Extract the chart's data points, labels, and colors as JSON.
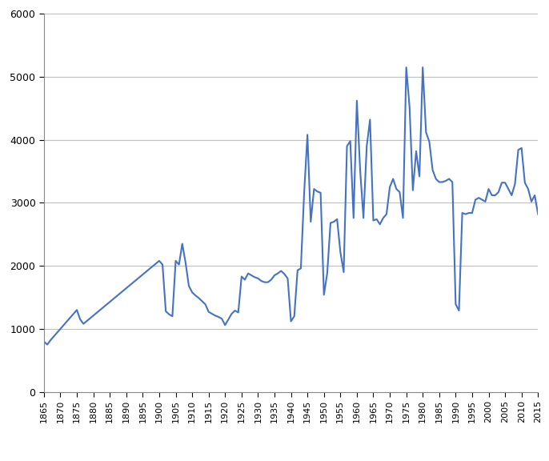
{
  "line_color": "#4472C4",
  "background_color": "#FFFFFF",
  "grid_color": "#BEBEBE",
  "ylim": [
    0,
    6000
  ],
  "yticks": [
    0,
    1000,
    2000,
    3000,
    4000,
    5000,
    6000
  ],
  "xlim": [
    1865,
    2015
  ],
  "xtick_step": 5,
  "years": [
    1865,
    1866,
    1867,
    1875,
    1876,
    1877,
    1900,
    1901,
    1902,
    1903,
    1904,
    1905,
    1906,
    1907,
    1908,
    1909,
    1910,
    1911,
    1912,
    1913,
    1914,
    1915,
    1916,
    1917,
    1918,
    1919,
    1920,
    1921,
    1922,
    1923,
    1924,
    1925,
    1926,
    1927,
    1928,
    1929,
    1930,
    1931,
    1932,
    1933,
    1934,
    1935,
    1936,
    1937,
    1938,
    1939,
    1940,
    1941,
    1942,
    1943,
    1944,
    1945,
    1946,
    1947,
    1948,
    1949,
    1950,
    1951,
    1952,
    1953,
    1954,
    1955,
    1956,
    1957,
    1958,
    1959,
    1960,
    1961,
    1962,
    1963,
    1964,
    1965,
    1966,
    1967,
    1968,
    1969,
    1970,
    1971,
    1972,
    1973,
    1974,
    1975,
    1976,
    1977,
    1978,
    1979,
    1980,
    1981,
    1982,
    1983,
    1984,
    1985,
    1986,
    1987,
    1988,
    1989,
    1990,
    1991,
    1992,
    1993,
    1994,
    1995,
    1996,
    1997,
    1998,
    1999,
    2000,
    2001,
    2002,
    2003,
    2004,
    2005,
    2006,
    2007,
    2008,
    2009,
    2010,
    2011,
    2012,
    2013,
    2014,
    2015
  ],
  "values": [
    800,
    750,
    820,
    1300,
    1150,
    1080,
    2080,
    2020,
    1280,
    1230,
    1200,
    2080,
    2020,
    2350,
    2050,
    1680,
    1580,
    1530,
    1490,
    1440,
    1390,
    1270,
    1240,
    1210,
    1190,
    1160,
    1060,
    1150,
    1240,
    1290,
    1260,
    1830,
    1780,
    1880,
    1850,
    1820,
    1800,
    1760,
    1740,
    1740,
    1780,
    1850,
    1880,
    1920,
    1870,
    1800,
    1120,
    1200,
    1930,
    1960,
    3160,
    4080,
    2700,
    3220,
    3180,
    3160,
    1540,
    1880,
    2680,
    2700,
    2740,
    2220,
    1900,
    3900,
    3980,
    2760,
    4620,
    3520,
    2760,
    3900,
    4320,
    2720,
    2740,
    2660,
    2760,
    2820,
    3250,
    3380,
    3220,
    3170,
    2760,
    5150,
    4520,
    3200,
    3820,
    3420,
    5150,
    4120,
    3970,
    3520,
    3380,
    3330,
    3330,
    3350,
    3380,
    3330,
    1390,
    1290,
    2840,
    2820,
    2840,
    2840,
    3050,
    3080,
    3050,
    3020,
    3220,
    3120,
    3120,
    3170,
    3320,
    3320,
    3220,
    3120,
    3300,
    3840,
    3870,
    3320,
    3220,
    3020,
    3120,
    2820
  ],
  "spine_color": "#888888",
  "linewidth": 1.5
}
